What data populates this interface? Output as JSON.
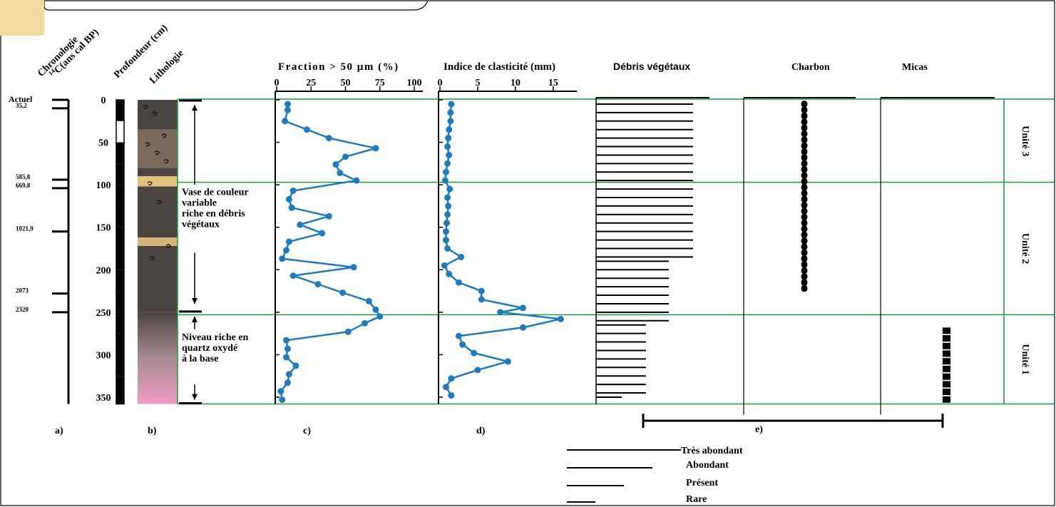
{
  "headers": {
    "chronologie": "Chronologie",
    "chronologie2": "C(ans cal BP)",
    "chronologie_sup": "14",
    "profondeur": "Profondeur (cm)",
    "lithologie": "Lithologie",
    "fraction": "Fraction > 50 µm (%)",
    "clasticite": "Indice de clasticité (mm)",
    "debris": "Débris végétaux",
    "charbon": "Charbon",
    "micas": "Micas"
  },
  "panel_labels": [
    "a)",
    "b)",
    "c)",
    "d)",
    "e)"
  ],
  "chronology": [
    {
      "label": "Actuel",
      "depth": 0
    },
    {
      "label": "35,2",
      "depth": 10
    },
    {
      "label": "585,8",
      "depth": 94
    },
    {
      "label": "669,8",
      "depth": 104
    },
    {
      "label": "1021,9",
      "depth": 155
    },
    {
      "label": "2073",
      "depth": 228
    },
    {
      "label": "2320",
      "depth": 250
    }
  ],
  "depth_ticks": [
    "0",
    "50",
    "100",
    "150",
    "200",
    "250",
    "300",
    "350"
  ],
  "units": [
    {
      "label": "Unité 3",
      "top": 0,
      "bottom": 97
    },
    {
      "label": "Unité 2",
      "top": 97,
      "bottom": 253
    },
    {
      "label": "Unité 1",
      "top": 253,
      "bottom": 358
    }
  ],
  "lithology_notes": [
    {
      "lines": [
        "Vase de couleur",
        "variable",
        "riche en débris",
        "végétaux"
      ]
    },
    {
      "lines": [
        "Niveau riche en",
        "quartz oxydé",
        "à la base"
      ]
    }
  ],
  "legend": {
    "title": "e)",
    "items": [
      "Très abondant",
      "Abondant",
      "Présent",
      "Rare"
    ]
  },
  "chart_data": [
    {
      "type": "line",
      "title": "Fraction > 50 µm (%)",
      "x_ticks": [
        "0",
        "25",
        "50",
        "75",
        "100"
      ],
      "xlim": [
        0,
        100
      ],
      "ylim": [
        0,
        358
      ],
      "y_inverted": true,
      "color": "#1f7bbf",
      "points": [
        [
          8,
          5
        ],
        [
          8,
          12
        ],
        [
          6,
          25
        ],
        [
          22,
          35
        ],
        [
          38,
          45
        ],
        [
          72,
          57
        ],
        [
          50,
          67
        ],
        [
          43,
          76
        ],
        [
          46,
          86
        ],
        [
          58,
          95
        ],
        [
          12,
          107
        ],
        [
          9,
          117
        ],
        [
          11,
          127
        ],
        [
          38,
          137
        ],
        [
          17,
          147
        ],
        [
          33,
          157
        ],
        [
          9,
          167
        ],
        [
          7,
          177
        ],
        [
          4,
          187
        ],
        [
          56,
          197
        ],
        [
          12,
          207
        ],
        [
          30,
          217
        ],
        [
          48,
          227
        ],
        [
          67,
          237
        ],
        [
          72,
          247
        ],
        [
          75,
          255
        ],
        [
          64,
          263
        ],
        [
          52,
          273
        ],
        [
          7,
          283
        ],
        [
          8,
          293
        ],
        [
          7,
          303
        ],
        [
          14,
          313
        ],
        [
          9,
          323
        ],
        [
          8,
          333
        ],
        [
          3,
          343
        ],
        [
          4,
          353
        ]
      ]
    },
    {
      "type": "line",
      "title": "Indice de clasticité (mm)",
      "x_ticks": [
        "0",
        "5",
        "10",
        "15"
      ],
      "xlim": [
        0,
        17
      ],
      "ylim": [
        0,
        358
      ],
      "y_inverted": true,
      "color": "#1f7bbf",
      "points": [
        [
          1.5,
          5
        ],
        [
          1.4,
          15
        ],
        [
          1.4,
          25
        ],
        [
          1.2,
          35
        ],
        [
          1.1,
          45
        ],
        [
          1.0,
          55
        ],
        [
          1.2,
          65
        ],
        [
          1.0,
          75
        ],
        [
          0.8,
          85
        ],
        [
          0.7,
          95
        ],
        [
          1.3,
          105
        ],
        [
          1.0,
          115
        ],
        [
          1.1,
          125
        ],
        [
          1.0,
          135
        ],
        [
          0.9,
          145
        ],
        [
          0.8,
          155
        ],
        [
          0.8,
          165
        ],
        [
          1.0,
          175
        ],
        [
          2.8,
          185
        ],
        [
          0.6,
          195
        ],
        [
          1.2,
          205
        ],
        [
          2.5,
          215
        ],
        [
          5.5,
          225
        ],
        [
          5.5,
          235
        ],
        [
          11,
          245
        ],
        [
          8,
          250
        ],
        [
          16,
          258
        ],
        [
          11,
          268
        ],
        [
          2.5,
          278
        ],
        [
          3,
          288
        ],
        [
          4.5,
          298
        ],
        [
          9,
          308
        ],
        [
          5,
          318
        ],
        [
          1.5,
          328
        ],
        [
          0.8,
          338
        ],
        [
          1.5,
          348
        ]
      ]
    },
    {
      "type": "bar",
      "title": "Débris végétaux",
      "scale": [
        "Rare",
        "Présent",
        "Abondant",
        "Très abondant"
      ],
      "intervals": [
        {
          "top": 5,
          "bottom": 185,
          "level": "Très abondant"
        },
        {
          "top": 190,
          "bottom": 260,
          "level": "Abondant"
        },
        {
          "top": 265,
          "bottom": 345,
          "level": "Présent"
        },
        {
          "top": 350,
          "bottom": 355,
          "level": "Rare"
        }
      ]
    },
    {
      "type": "scatter",
      "title": "Charbon",
      "from": 5,
      "to": 222,
      "spacing": 7
    },
    {
      "type": "bar",
      "title": "Micas",
      "from": 268,
      "to": 358
    }
  ]
}
